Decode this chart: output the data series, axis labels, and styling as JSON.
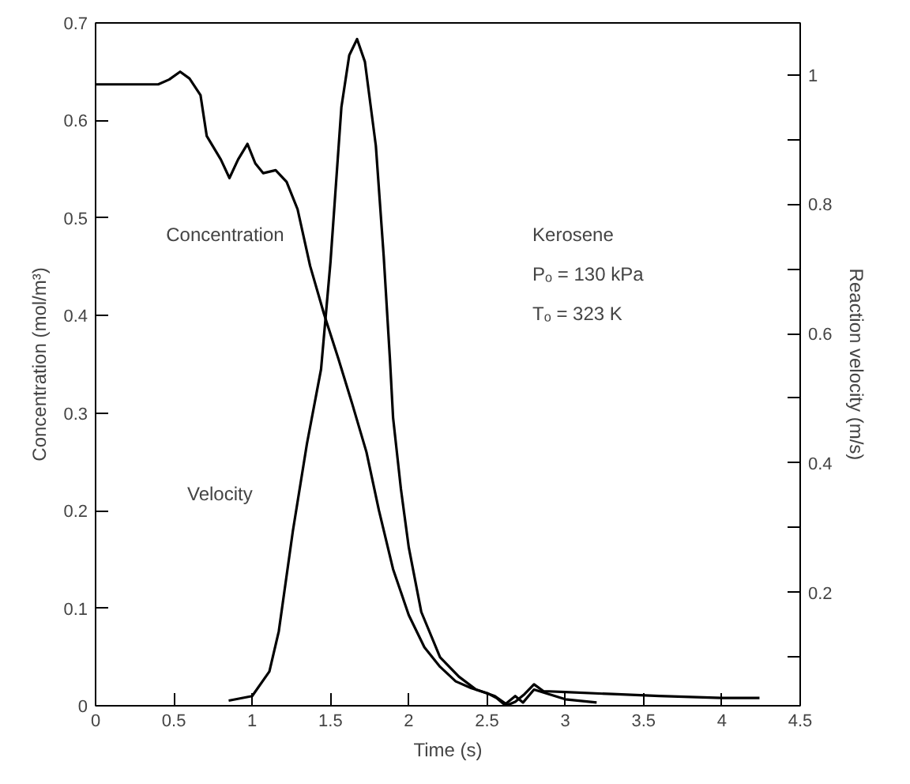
{
  "chart_data": {
    "type": "line",
    "xlabel": "Time (s)",
    "ylabel": "Concentration (mol/m³)",
    "y2label": "Reaction velocity (m/s)",
    "xlim": [
      0,
      4.5
    ],
    "xticks": [
      0,
      0.5,
      1,
      1.5,
      2,
      2.5,
      3,
      3.5,
      4,
      4.5
    ],
    "ylim": [
      0,
      0.7
    ],
    "yticks": [
      0,
      0.1,
      0.2,
      0.3,
      0.4,
      0.5,
      0.6,
      0.7
    ],
    "y2lim": [
      0.025,
      1.08
    ],
    "y2ticks": [
      {
        "value": 0.1,
        "label": null
      },
      0.2,
      {
        "value": 0.3,
        "label": null
      },
      0.4,
      {
        "value": 0.5,
        "label": null
      },
      0.6,
      {
        "value": 0.7,
        "label": null
      },
      0.8,
      {
        "value": 0.9,
        "label": null
      },
      1
    ],
    "grid": false,
    "marker": "none",
    "line_style": "solid",
    "annotations": [
      "Kerosene",
      "Pₒ =  130 kPa",
      "Tₒ =  323 K"
    ],
    "series": [
      {
        "name": "Concentration",
        "color": "#000000",
        "x": [
          0,
          0.4,
          0.47,
          0.54,
          0.6,
          0.67,
          0.71,
          0.8,
          0.855,
          0.91,
          0.97,
          1.02,
          1.07,
          1.15,
          1.22,
          1.29,
          1.37,
          1.46,
          1.55,
          1.64,
          1.73,
          1.81,
          1.9,
          2.0,
          2.1,
          2.2,
          2.3,
          2.4,
          2.5,
          2.56,
          2.62,
          2.68,
          2.74,
          2.8,
          2.86,
          3.0,
          3.3,
          3.6,
          4.0,
          4.24
        ],
        "values": [
          0.637,
          0.637,
          0.642,
          0.65,
          0.643,
          0.626,
          0.584,
          0.56,
          0.541,
          0.56,
          0.576,
          0.556,
          0.546,
          0.549,
          0.537,
          0.509,
          0.451,
          0.401,
          0.356,
          0.309,
          0.26,
          0.2,
          0.14,
          0.093,
          0.06,
          0.04,
          0.025,
          0.018,
          0.013,
          0.008,
          0.0,
          0.004,
          0.012,
          0.022,
          0.015,
          0.014,
          0.012,
          0.01,
          0.008,
          0.008
        ]
      },
      {
        "name": "Velocity",
        "color": "#000000",
        "axis": "y2",
        "x": [
          0.85,
          1.0,
          1.11,
          1.17,
          1.26,
          1.35,
          1.44,
          1.5,
          1.57,
          1.62,
          1.67,
          1.72,
          1.79,
          1.84,
          1.88,
          1.9,
          1.95,
          2.0,
          2.08,
          2.2,
          2.32,
          2.43,
          2.55,
          2.62,
          2.68,
          2.73,
          2.8,
          3.0,
          3.2
        ],
        "values": [
          0.033,
          0.04,
          0.078,
          0.14,
          0.295,
          0.43,
          0.545,
          0.71,
          0.95,
          1.03,
          1.055,
          1.02,
          0.89,
          0.72,
          0.56,
          0.47,
          0.36,
          0.27,
          0.17,
          0.1,
          0.07,
          0.05,
          0.04,
          0.028,
          0.04,
          0.03,
          0.05,
          0.035,
          0.03
        ]
      }
    ]
  }
}
